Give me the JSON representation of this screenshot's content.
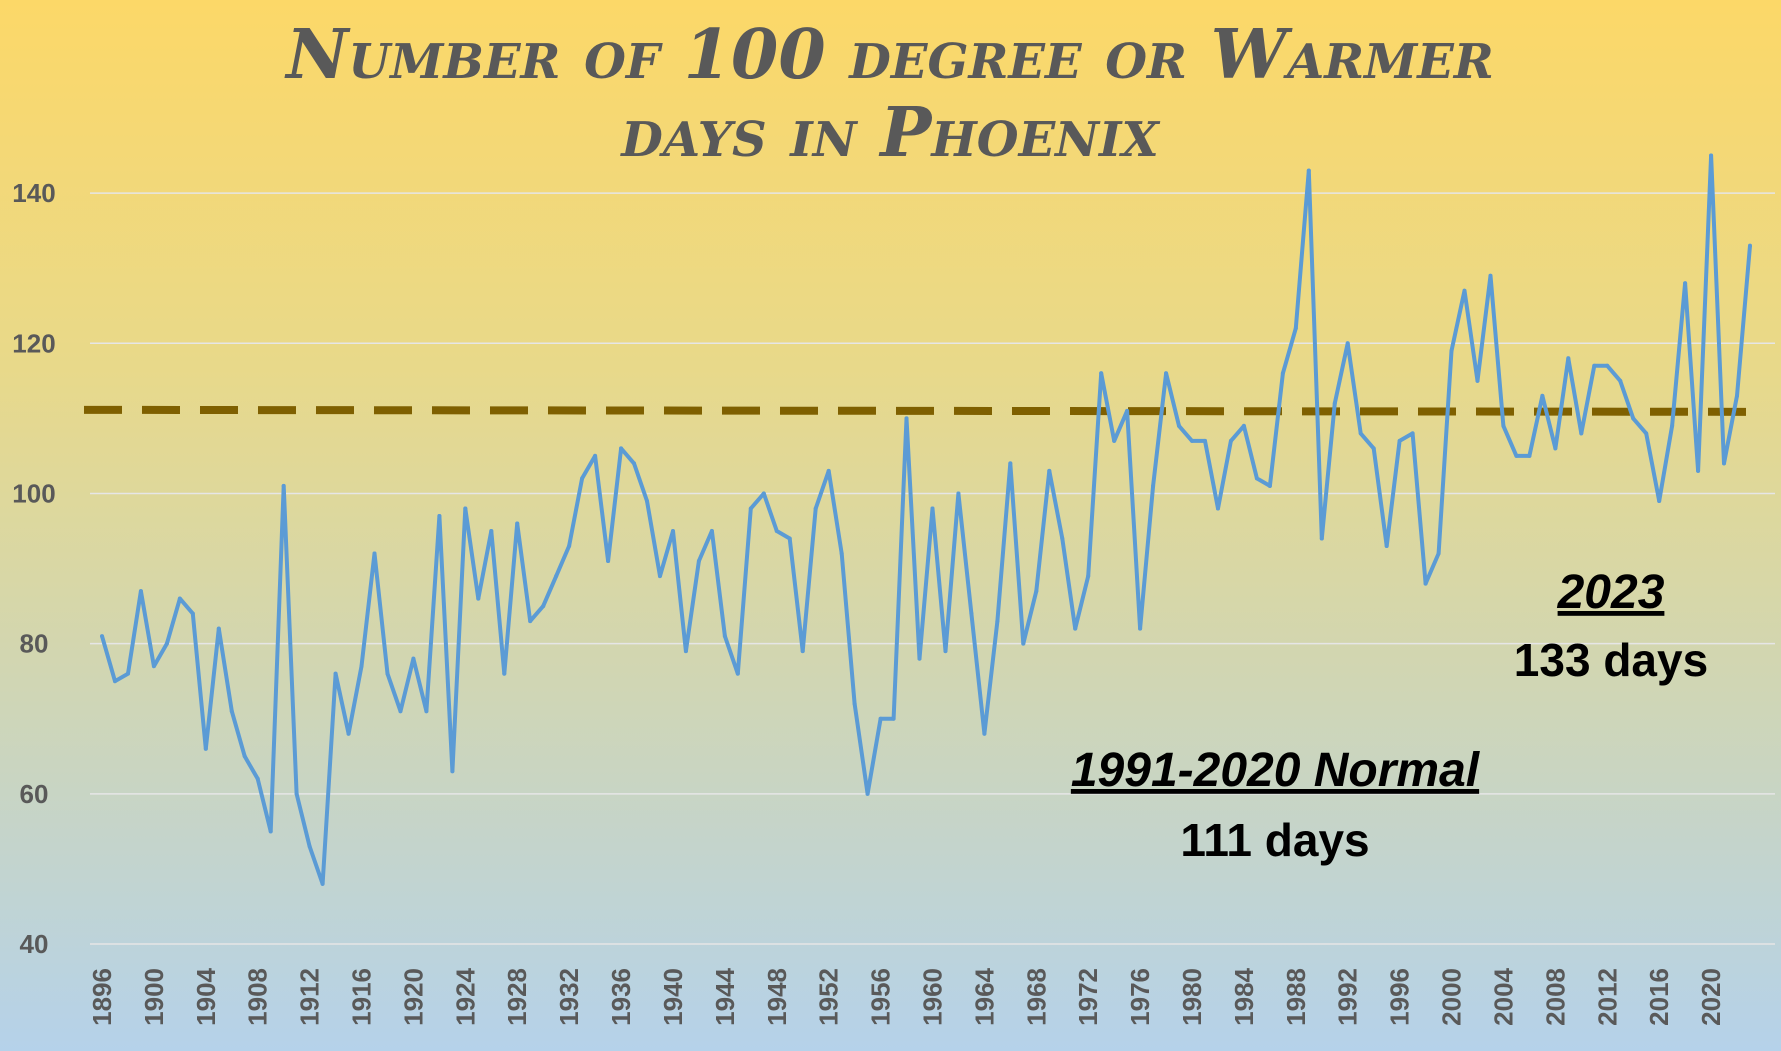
{
  "colors": {
    "series_line": "#5b9bd5",
    "normal_line": "#7f6000",
    "title": "#595959",
    "grid": "#e6e6e6",
    "axis_labels": "#595959"
  },
  "chart_data": {
    "type": "line",
    "title_line1": "Number of 100 degree or Warmer",
    "title_line2": "days in Phoenix",
    "xlabel": "",
    "ylabel": "",
    "ylim": [
      40,
      150
    ],
    "yticks": [
      40,
      60,
      80,
      100,
      120,
      140
    ],
    "xlim": [
      1896,
      2023
    ],
    "xticks": [
      1896,
      1900,
      1904,
      1908,
      1912,
      1916,
      1920,
      1924,
      1928,
      1932,
      1936,
      1940,
      1944,
      1948,
      1952,
      1956,
      1960,
      1964,
      1968,
      1972,
      1976,
      1980,
      1984,
      1988,
      1992,
      1996,
      2000,
      2004,
      2008,
      2012,
      2016,
      2020
    ],
    "grid": "horizontal",
    "legend": "none",
    "x": [
      1896,
      1897,
      1898,
      1899,
      1900,
      1901,
      1902,
      1903,
      1904,
      1905,
      1906,
      1907,
      1908,
      1909,
      1910,
      1911,
      1912,
      1913,
      1914,
      1915,
      1916,
      1917,
      1918,
      1919,
      1920,
      1921,
      1922,
      1923,
      1924,
      1925,
      1926,
      1927,
      1928,
      1929,
      1930,
      1931,
      1932,
      1933,
      1934,
      1935,
      1936,
      1937,
      1938,
      1939,
      1940,
      1941,
      1942,
      1943,
      1944,
      1945,
      1946,
      1947,
      1948,
      1949,
      1950,
      1951,
      1952,
      1953,
      1954,
      1955,
      1956,
      1957,
      1958,
      1959,
      1960,
      1961,
      1962,
      1963,
      1964,
      1965,
      1966,
      1967,
      1968,
      1969,
      1970,
      1971,
      1972,
      1973,
      1974,
      1975,
      1976,
      1977,
      1978,
      1979,
      1980,
      1981,
      1982,
      1983,
      1984,
      1985,
      1986,
      1987,
      1988,
      1989,
      1990,
      1991,
      1992,
      1993,
      1994,
      1995,
      1996,
      1997,
      1998,
      1999,
      2000,
      2001,
      2002,
      2003,
      2004,
      2005,
      2006,
      2007,
      2008,
      2009,
      2010,
      2011,
      2012,
      2013,
      2014,
      2015,
      2016,
      2017,
      2018,
      2019,
      2020,
      2021,
      2022,
      2023
    ],
    "series": [
      {
        "values": [
          81,
          75,
          76,
          87,
          77,
          80,
          86,
          84,
          66,
          82,
          71,
          65,
          62,
          55,
          101,
          60,
          53,
          48,
          76,
          68,
          77,
          92,
          76,
          71,
          78,
          71,
          97,
          63,
          98,
          86,
          95,
          76,
          96,
          83,
          85,
          89,
          93,
          102,
          105,
          91,
          106,
          104,
          99,
          89,
          95,
          79,
          91,
          95,
          81,
          76,
          98,
          100,
          95,
          94,
          79,
          98,
          103,
          92,
          72,
          60,
          70,
          70,
          110,
          78,
          98,
          79,
          100,
          84,
          68,
          83,
          104,
          80,
          87,
          103,
          94,
          82,
          89,
          116,
          107,
          111,
          82,
          101,
          116,
          109,
          107,
          107,
          98,
          107,
          109,
          102,
          101,
          116,
          122,
          143,
          94,
          112,
          120,
          108,
          106,
          93,
          107,
          108,
          88,
          92,
          119,
          127,
          115,
          129,
          109,
          105,
          105,
          113,
          106,
          118,
          108,
          117,
          117,
          115,
          110,
          108,
          99,
          109,
          128,
          103,
          145,
          104,
          113,
          133
        ]
      }
    ],
    "normal": {
      "value": 111,
      "label": "1991-2020 Normal",
      "sublabel": "111 days"
    },
    "latest": {
      "label": "2023",
      "sublabel": "133 days"
    }
  }
}
